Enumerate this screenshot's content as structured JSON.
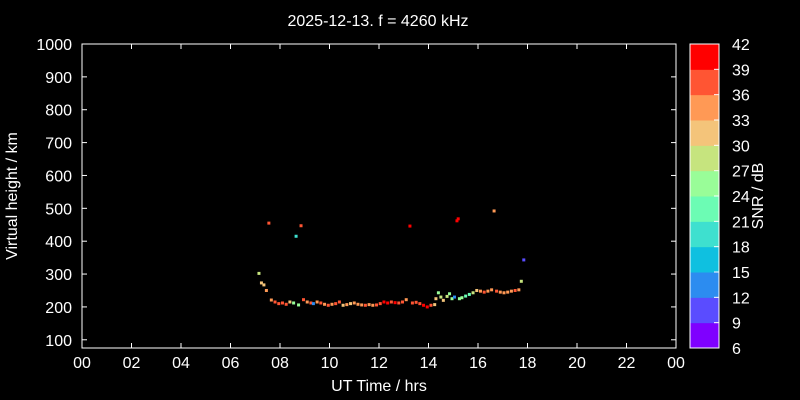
{
  "chart_data": {
    "type": "scatter",
    "title": "2025-12-13. f = 4260 kHz",
    "xlabel": "UT Time / hrs",
    "ylabel": "Virtual height / km",
    "xlim": [
      0,
      24
    ],
    "ylim": [
      75,
      1000
    ],
    "xticks": [
      "00",
      "02",
      "04",
      "06",
      "08",
      "10",
      "12",
      "14",
      "16",
      "18",
      "20",
      "22",
      "00"
    ],
    "yticks": [
      100,
      200,
      300,
      400,
      500,
      600,
      700,
      800,
      900,
      1000
    ],
    "colorbar": {
      "label": "SNR / dB",
      "ticks": [
        6,
        9,
        12,
        15,
        18,
        21,
        24,
        27,
        30,
        33,
        36,
        39,
        42
      ],
      "range": [
        6,
        42
      ],
      "colors": [
        "#7f00ff",
        "#5a4cff",
        "#2c8cf0",
        "#0fc0e0",
        "#3ee0cf",
        "#6cfcb4",
        "#99fd98",
        "#c6e47e",
        "#f4c47a",
        "#ff9955",
        "#ff5533",
        "#ff0000"
      ]
    },
    "grid": false,
    "legend": "colorbar right",
    "points": [
      {
        "x": 7.15,
        "y": 302,
        "snr": 28
      },
      {
        "x": 7.25,
        "y": 273,
        "snr": 31
      },
      {
        "x": 7.35,
        "y": 267,
        "snr": 32
      },
      {
        "x": 7.45,
        "y": 250,
        "snr": 33
      },
      {
        "x": 7.55,
        "y": 455,
        "snr": 37
      },
      {
        "x": 7.65,
        "y": 221,
        "snr": 35
      },
      {
        "x": 7.8,
        "y": 215,
        "snr": 36
      },
      {
        "x": 7.95,
        "y": 210,
        "snr": 37
      },
      {
        "x": 8.1,
        "y": 212,
        "snr": 38
      },
      {
        "x": 8.25,
        "y": 208,
        "snr": 36
      },
      {
        "x": 8.4,
        "y": 215,
        "snr": 30
      },
      {
        "x": 8.55,
        "y": 212,
        "snr": 25
      },
      {
        "x": 8.65,
        "y": 415,
        "snr": 20
      },
      {
        "x": 8.75,
        "y": 206,
        "snr": 24
      },
      {
        "x": 8.85,
        "y": 447,
        "snr": 37
      },
      {
        "x": 8.95,
        "y": 222,
        "snr": 36
      },
      {
        "x": 9.1,
        "y": 215,
        "snr": 35
      },
      {
        "x": 9.25,
        "y": 212,
        "snr": 36
      },
      {
        "x": 9.35,
        "y": 210,
        "snr": 14
      },
      {
        "x": 9.5,
        "y": 215,
        "snr": 33
      },
      {
        "x": 9.65,
        "y": 212,
        "snr": 36
      },
      {
        "x": 9.8,
        "y": 208,
        "snr": 35
      },
      {
        "x": 9.95,
        "y": 205,
        "snr": 36
      },
      {
        "x": 10.1,
        "y": 208,
        "snr": 35
      },
      {
        "x": 10.25,
        "y": 210,
        "snr": 36
      },
      {
        "x": 10.4,
        "y": 215,
        "snr": 38
      },
      {
        "x": 10.55,
        "y": 205,
        "snr": 31
      },
      {
        "x": 10.7,
        "y": 207,
        "snr": 33
      },
      {
        "x": 10.85,
        "y": 210,
        "snr": 31
      },
      {
        "x": 11.0,
        "y": 212,
        "snr": 33
      },
      {
        "x": 11.15,
        "y": 208,
        "snr": 34
      },
      {
        "x": 11.3,
        "y": 206,
        "snr": 33
      },
      {
        "x": 11.45,
        "y": 205,
        "snr": 36
      },
      {
        "x": 11.6,
        "y": 207,
        "snr": 33
      },
      {
        "x": 11.75,
        "y": 205,
        "snr": 35
      },
      {
        "x": 11.9,
        "y": 206,
        "snr": 36
      },
      {
        "x": 12.05,
        "y": 210,
        "snr": 38
      },
      {
        "x": 12.2,
        "y": 215,
        "snr": 40
      },
      {
        "x": 12.35,
        "y": 212,
        "snr": 39
      },
      {
        "x": 12.5,
        "y": 215,
        "snr": 38
      },
      {
        "x": 12.65,
        "y": 213,
        "snr": 40
      },
      {
        "x": 12.8,
        "y": 212,
        "snr": 38
      },
      {
        "x": 12.95,
        "y": 215,
        "snr": 36
      },
      {
        "x": 13.1,
        "y": 222,
        "snr": 33
      },
      {
        "x": 13.25,
        "y": 446,
        "snr": 40
      },
      {
        "x": 13.35,
        "y": 212,
        "snr": 36
      },
      {
        "x": 13.5,
        "y": 214,
        "snr": 38
      },
      {
        "x": 13.65,
        "y": 210,
        "snr": 37
      },
      {
        "x": 13.8,
        "y": 205,
        "snr": 39
      },
      {
        "x": 13.95,
        "y": 200,
        "snr": 40
      },
      {
        "x": 14.1,
        "y": 205,
        "snr": 38
      },
      {
        "x": 14.25,
        "y": 207,
        "snr": 30
      },
      {
        "x": 14.3,
        "y": 225,
        "snr": 30
      },
      {
        "x": 14.4,
        "y": 243,
        "snr": 24
      },
      {
        "x": 14.5,
        "y": 230,
        "snr": 28
      },
      {
        "x": 14.6,
        "y": 220,
        "snr": 31
      },
      {
        "x": 14.75,
        "y": 232,
        "snr": 28
      },
      {
        "x": 14.85,
        "y": 240,
        "snr": 24
      },
      {
        "x": 14.95,
        "y": 225,
        "snr": 26
      },
      {
        "x": 15.05,
        "y": 230,
        "snr": 12
      },
      {
        "x": 15.15,
        "y": 462,
        "snr": 39
      },
      {
        "x": 15.2,
        "y": 468,
        "snr": 39
      },
      {
        "x": 15.25,
        "y": 225,
        "snr": 26
      },
      {
        "x": 15.35,
        "y": 228,
        "snr": 25
      },
      {
        "x": 15.5,
        "y": 233,
        "snr": 22
      },
      {
        "x": 15.65,
        "y": 238,
        "snr": 22
      },
      {
        "x": 15.8,
        "y": 243,
        "snr": 28
      },
      {
        "x": 15.95,
        "y": 250,
        "snr": 30
      },
      {
        "x": 16.1,
        "y": 248,
        "snr": 33
      },
      {
        "x": 16.25,
        "y": 245,
        "snr": 36
      },
      {
        "x": 16.4,
        "y": 248,
        "snr": 33
      },
      {
        "x": 16.55,
        "y": 252,
        "snr": 35
      },
      {
        "x": 16.65,
        "y": 492,
        "snr": 34
      },
      {
        "x": 16.75,
        "y": 248,
        "snr": 36
      },
      {
        "x": 16.9,
        "y": 245,
        "snr": 34
      },
      {
        "x": 17.05,
        "y": 243,
        "snr": 35
      },
      {
        "x": 17.2,
        "y": 245,
        "snr": 35
      },
      {
        "x": 17.35,
        "y": 248,
        "snr": 34
      },
      {
        "x": 17.5,
        "y": 250,
        "snr": 36
      },
      {
        "x": 17.65,
        "y": 252,
        "snr": 33
      },
      {
        "x": 17.75,
        "y": 278,
        "snr": 28
      },
      {
        "x": 17.85,
        "y": 343,
        "snr": 10
      }
    ]
  }
}
